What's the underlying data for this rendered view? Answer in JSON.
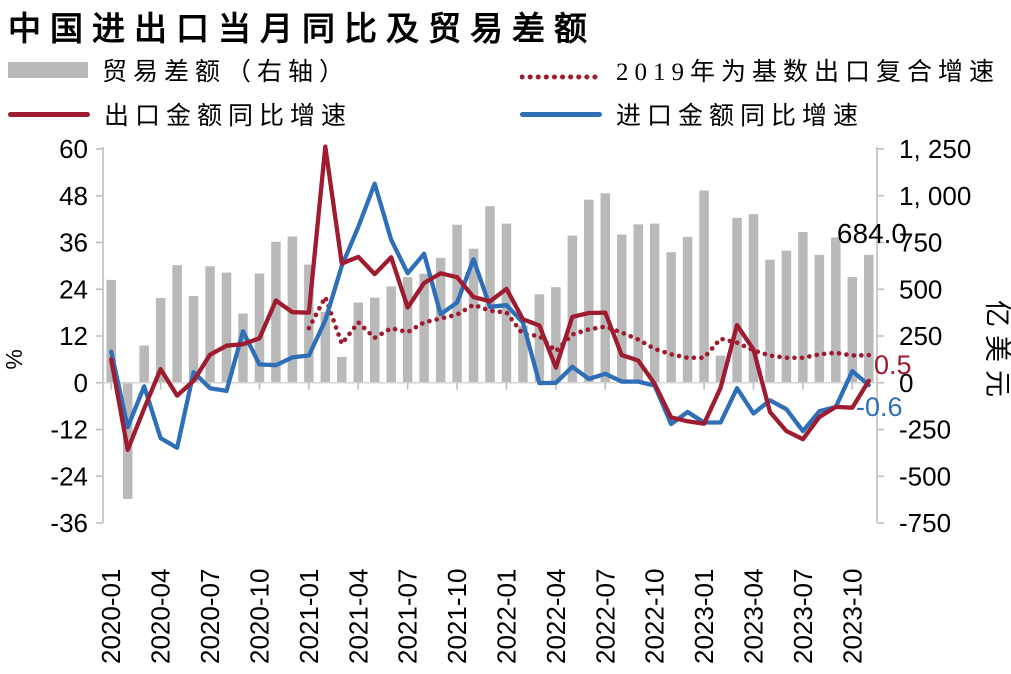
{
  "title": "中国进出口当月同比及贸易差额",
  "colors": {
    "bar_gray": "#b9b9b9",
    "export_red": "#9e1b30",
    "import_blue": "#2e6fb7",
    "axis_gray": "#bfbfbf",
    "zero_line_gray": "#d6d6d6",
    "text_black": "#000000"
  },
  "legend": [
    {
      "id": "balance",
      "label": "贸易差额（右轴）",
      "marker": "bar-swatch-icon",
      "color": "#b9b9b9"
    },
    {
      "id": "compound",
      "label": "2019年为基数出口复合增速",
      "marker": "dotted-line-icon",
      "color": "#9e1b30"
    },
    {
      "id": "export",
      "label": "出口金额同比增速",
      "marker": "solid-line-icon",
      "color": "#9e1b30"
    },
    {
      "id": "import",
      "label": "进口金额同比增速",
      "marker": "solid-line-icon",
      "color": "#2e6fb7"
    }
  ],
  "chart_data": {
    "type": "combo",
    "title": "中国进出口当月同比及贸易差额",
    "categories": [
      "2020-01",
      "2020-02",
      "2020-03",
      "2020-04",
      "2020-05",
      "2020-06",
      "2020-07",
      "2020-08",
      "2020-09",
      "2020-10",
      "2020-11",
      "2020-12",
      "2021-01",
      "2021-02",
      "2021-03",
      "2021-04",
      "2021-05",
      "2021-06",
      "2021-07",
      "2021-08",
      "2021-09",
      "2021-10",
      "2021-11",
      "2021-12",
      "2022-01",
      "2022-02",
      "2022-03",
      "2022-04",
      "2022-05",
      "2022-06",
      "2022-07",
      "2022-08",
      "2022-09",
      "2022-10",
      "2022-11",
      "2022-12",
      "2023-01",
      "2023-02",
      "2023-03",
      "2023-04",
      "2023-05",
      "2023-06",
      "2023-07",
      "2023-08",
      "2023-09",
      "2023-10",
      "2023-11"
    ],
    "x_tick_labels": [
      "2020-01",
      "2020-04",
      "2020-07",
      "2020-10",
      "2021-01",
      "2021-04",
      "2021-07",
      "2021-10",
      "2022-01",
      "2022-04",
      "2022-07",
      "2022-10",
      "2023-01",
      "2023-04",
      "2023-07",
      "2023-10"
    ],
    "x_tick_every": 3,
    "grid": false,
    "legend_position": "top",
    "left_axis": {
      "label": "%",
      "ticks": [
        60,
        48,
        36,
        24,
        12,
        0,
        -12,
        -24,
        -36
      ],
      "range": [
        -36,
        60
      ]
    },
    "right_axis": {
      "label": "亿美元",
      "tick_labels": [
        "1, 250",
        "1, 000",
        "750",
        "500",
        "250",
        "0",
        "-250",
        "-500",
        "-750"
      ],
      "tick_values": [
        1250,
        1000,
        750,
        500,
        250,
        0,
        -250,
        -500,
        -750
      ],
      "range": [
        -750,
        1250
      ]
    },
    "series": [
      {
        "name": "贸易差额（右轴）",
        "type": "bar",
        "axis": "right",
        "color": "#b9b9b9",
        "values": [
          550,
          -621,
          199,
          453,
          629,
          464,
          623,
          589,
          370,
          584,
          754,
          782,
          632,
          378,
          138,
          429,
          455,
          515,
          565,
          583,
          668,
          845,
          717,
          944,
          851,
          305,
          473,
          511,
          787,
          979,
          1013,
          793,
          847,
          851,
          698,
          780,
          1028,
          145,
          882,
          902,
          658,
          706,
          806,
          684,
          777,
          565,
          684
        ]
      },
      {
        "name": "出口金额同比增速",
        "type": "line",
        "axis": "left",
        "color": "#9e1b30",
        "values": [
          6.0,
          -17.2,
          -6.6,
          3.5,
          -3.3,
          0.5,
          7.2,
          9.5,
          9.9,
          11.4,
          21.1,
          18.1,
          18.0,
          60.6,
          30.6,
          32.3,
          27.9,
          32.2,
          19.3,
          25.6,
          28.1,
          27.1,
          22.0,
          20.9,
          24.1,
          16.3,
          14.7,
          3.9,
          16.9,
          17.9,
          18.0,
          7.1,
          5.7,
          -0.3,
          -8.9,
          -9.9,
          -10.5,
          -1.3,
          14.8,
          8.5,
          -7.5,
          -12.4,
          -14.5,
          -8.8,
          -6.2,
          -6.4,
          0.5
        ]
      },
      {
        "name": "进口金额同比增速",
        "type": "line",
        "axis": "left",
        "color": "#2e6fb7",
        "values": [
          8.0,
          -11.4,
          -0.9,
          -14.2,
          -16.7,
          2.7,
          -1.4,
          -2.1,
          13.2,
          4.7,
          4.5,
          6.5,
          7.0,
          16.0,
          30.0,
          40.0,
          51.1,
          36.7,
          28.1,
          33.1,
          17.6,
          20.6,
          31.7,
          19.5,
          19.9,
          15.5,
          -0.1,
          0.0,
          4.1,
          1.0,
          2.3,
          0.3,
          0.3,
          -0.7,
          -10.6,
          -7.5,
          -10.2,
          -10.2,
          -1.4,
          -7.9,
          -4.5,
          -6.8,
          -12.4,
          -7.3,
          -6.2,
          3.0,
          -0.6
        ]
      },
      {
        "name": "2019年为基数出口复合增速",
        "type": "dotted-line",
        "axis": "left",
        "color": "#9e1b30",
        "values": [
          null,
          null,
          null,
          null,
          null,
          null,
          null,
          null,
          null,
          null,
          null,
          null,
          14,
          22,
          10,
          15.5,
          11.5,
          14,
          13,
          15.5,
          16.5,
          17.5,
          20,
          18.5,
          18,
          12.5,
          12,
          8.1,
          12.4,
          13.7,
          14.4,
          12.9,
          11.1,
          8.7,
          7.3,
          6.4,
          6.4,
          11.3,
          10.3,
          8.3,
          7.0,
          6.4,
          6.4,
          7.3,
          7.7,
          7.0,
          7.1
        ]
      }
    ],
    "annotations": [
      {
        "id": "balance-last",
        "text": "684.0",
        "color": "#000000"
      },
      {
        "id": "export-last",
        "text": "0.5",
        "color": "#9e1b30"
      },
      {
        "id": "import-last",
        "text": "-0.6",
        "color": "#2e6fb7"
      }
    ]
  }
}
